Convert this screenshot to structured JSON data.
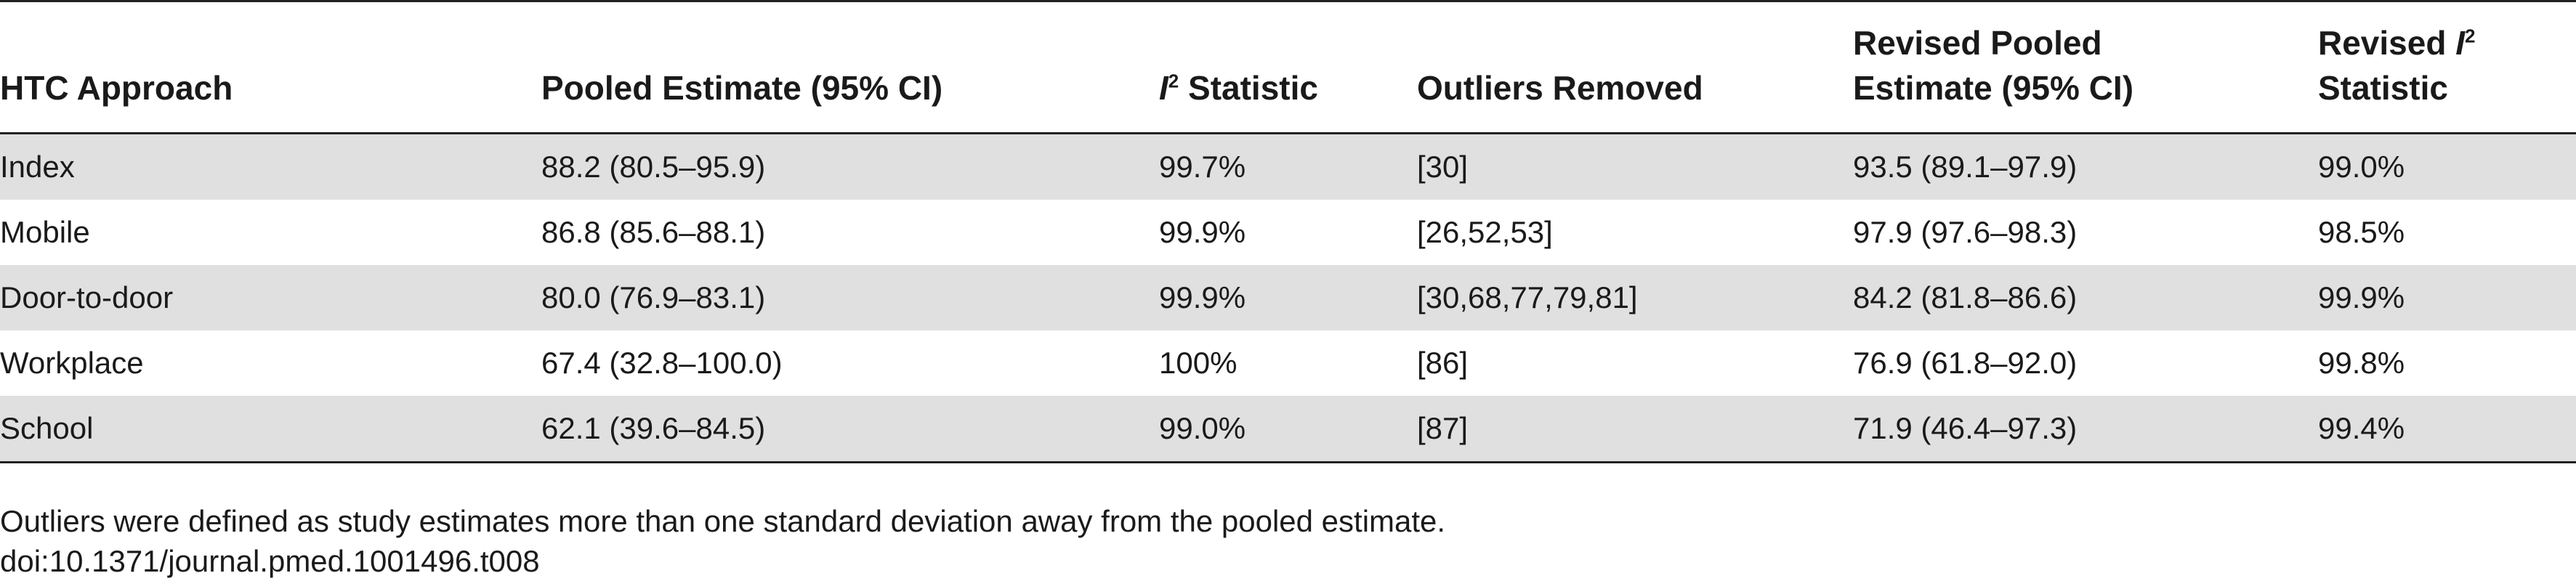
{
  "table": {
    "headers": {
      "approach": "HTC Approach",
      "pooled": "Pooled Estimate (95% CI)",
      "i2_symbol": "I",
      "i2_sup": "2",
      "i2_text": " Statistic",
      "outliers": "Outliers Removed",
      "revised_pooled_line1": "Revised Pooled",
      "revised_pooled_line2": "Estimate (95% CI)",
      "revised_i2_prefix": "Revised ",
      "revised_i2_symbol": "I",
      "revised_i2_sup": "2",
      "revised_i2_line2": "Statistic"
    },
    "rows": [
      {
        "approach": "Index",
        "pooled": "88.2 (80.5–95.9)",
        "i2": "99.7%",
        "outliers": "[30]",
        "revised_pooled": "93.5 (89.1–97.9)",
        "revised_i2": "99.0%"
      },
      {
        "approach": "Mobile",
        "pooled": "86.8 (85.6–88.1)",
        "i2": "99.9%",
        "outliers": "[26,52,53]",
        "revised_pooled": "97.9 (97.6–98.3)",
        "revised_i2": "98.5%"
      },
      {
        "approach": "Door-to-door",
        "pooled": "80.0 (76.9–83.1)",
        "i2": "99.9%",
        "outliers": "[30,68,77,79,81]",
        "revised_pooled": "84.2 (81.8–86.6)",
        "revised_i2": "99.9%"
      },
      {
        "approach": "Workplace",
        "pooled": "67.4 (32.8–100.0)",
        "i2": "100%",
        "outliers": "[86]",
        "revised_pooled": "76.9 (61.8–92.0)",
        "revised_i2": "99.8%"
      },
      {
        "approach": "School",
        "pooled": "62.1 (39.6–84.5)",
        "i2": "99.0%",
        "outliers": "[87]",
        "revised_pooled": "71.9 (46.4–97.3)",
        "revised_i2": "99.4%"
      }
    ]
  },
  "footnote": "Outliers were defined as study estimates more than one standard deviation away from the pooled estimate.",
  "doi": "doi:10.1371/journal.pmed.1001496.t008"
}
